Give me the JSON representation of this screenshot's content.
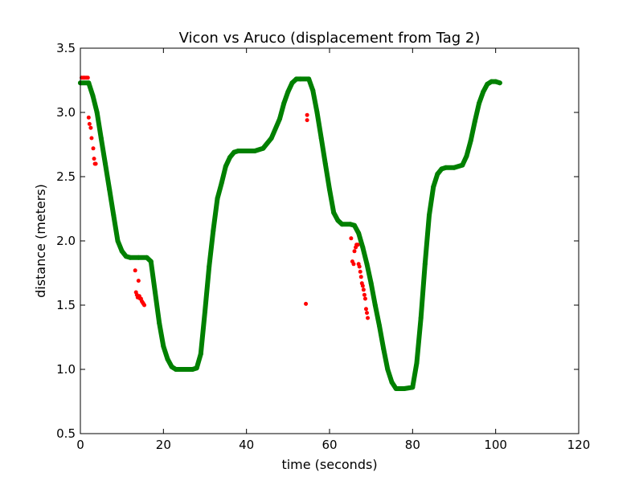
{
  "chart_data": {
    "type": "scatter",
    "title": "Vicon vs Aruco (displacement from Tag 2)",
    "xlabel": "time (seconds)",
    "ylabel": "distance (meters)",
    "xlim": [
      0,
      120
    ],
    "ylim": [
      0.5,
      3.5
    ],
    "xticks": [
      0,
      20,
      40,
      60,
      80,
      100,
      120
    ],
    "yticks": [
      0.5,
      1.0,
      1.5,
      2.0,
      2.5,
      3.0,
      3.5
    ],
    "xtick_labels": [
      "0",
      "20",
      "40",
      "60",
      "80",
      "100",
      "120"
    ],
    "ytick_labels": [
      "0.5",
      "1.0",
      "1.5",
      "2.0",
      "2.5",
      "3.0",
      "3.5"
    ],
    "grid": false,
    "legend": null,
    "series": [
      {
        "color": "#008000",
        "marker": "dense-line",
        "x": [
          0,
          2,
          3,
          4,
          5,
          6,
          7,
          8,
          9,
          10,
          11,
          12,
          14,
          16,
          17,
          18,
          19,
          20,
          21,
          22,
          23,
          25,
          27,
          28,
          29,
          30,
          31,
          32,
          33,
          34,
          35,
          36,
          37,
          38,
          40,
          42,
          44,
          46,
          48,
          49,
          50,
          51,
          52,
          53,
          55,
          56,
          57,
          58,
          59,
          60,
          61,
          62,
          63,
          65,
          66,
          67,
          68,
          69,
          70,
          71,
          72,
          73,
          74,
          75,
          76,
          78,
          80,
          81,
          82,
          83,
          84,
          85,
          86,
          87,
          88,
          90,
          92,
          93,
          94,
          95,
          96,
          97,
          98,
          99,
          100,
          101
        ],
        "y": [
          3.23,
          3.23,
          3.13,
          3.0,
          2.8,
          2.6,
          2.4,
          2.2,
          2.0,
          1.92,
          1.88,
          1.87,
          1.87,
          1.87,
          1.84,
          1.6,
          1.36,
          1.18,
          1.08,
          1.02,
          1.0,
          1.0,
          1.0,
          1.01,
          1.12,
          1.45,
          1.8,
          2.08,
          2.33,
          2.45,
          2.58,
          2.65,
          2.69,
          2.7,
          2.7,
          2.7,
          2.72,
          2.8,
          2.95,
          3.07,
          3.16,
          3.23,
          3.26,
          3.26,
          3.26,
          3.17,
          3.0,
          2.8,
          2.6,
          2.4,
          2.22,
          2.16,
          2.13,
          2.13,
          2.12,
          2.06,
          1.95,
          1.82,
          1.67,
          1.5,
          1.34,
          1.16,
          1.0,
          0.9,
          0.85,
          0.85,
          0.86,
          1.05,
          1.4,
          1.82,
          2.2,
          2.42,
          2.52,
          2.56,
          2.57,
          2.57,
          2.59,
          2.66,
          2.78,
          2.93,
          3.07,
          3.16,
          3.22,
          3.24,
          3.24,
          3.23
        ]
      },
      {
        "color": "#ff0000",
        "marker": "dot",
        "x": [
          0.3,
          0.7,
          1.0,
          1.4,
          1.8,
          2.0,
          2.2,
          2.5,
          2.7,
          3.1,
          3.3,
          3.5,
          3.7,
          13.2,
          13.4,
          13.6,
          13.8,
          14.0,
          14.2,
          14.4,
          14.6,
          14.8,
          15.0,
          15.2,
          15.4,
          54.3,
          54.6,
          54.6,
          65.2,
          65.5,
          65.8,
          66.0,
          66.3,
          66.5,
          66.8,
          67.0,
          67.2,
          67.4,
          67.6,
          67.8,
          68.0,
          68.2,
          68.4,
          68.6,
          68.8,
          69.0,
          69.2
        ],
        "y": [
          3.27,
          3.27,
          3.27,
          3.27,
          3.27,
          2.96,
          2.91,
          2.88,
          2.8,
          2.72,
          2.64,
          2.6,
          2.6,
          1.77,
          1.6,
          1.58,
          1.56,
          1.69,
          1.57,
          1.55,
          1.55,
          1.53,
          1.52,
          1.51,
          1.5,
          1.51,
          2.98,
          2.94,
          2.02,
          1.84,
          1.82,
          1.92,
          1.95,
          1.97,
          1.97,
          1.82,
          1.8,
          1.76,
          1.72,
          1.67,
          1.65,
          1.62,
          1.58,
          1.55,
          1.47,
          1.44,
          1.4
        ]
      }
    ]
  }
}
